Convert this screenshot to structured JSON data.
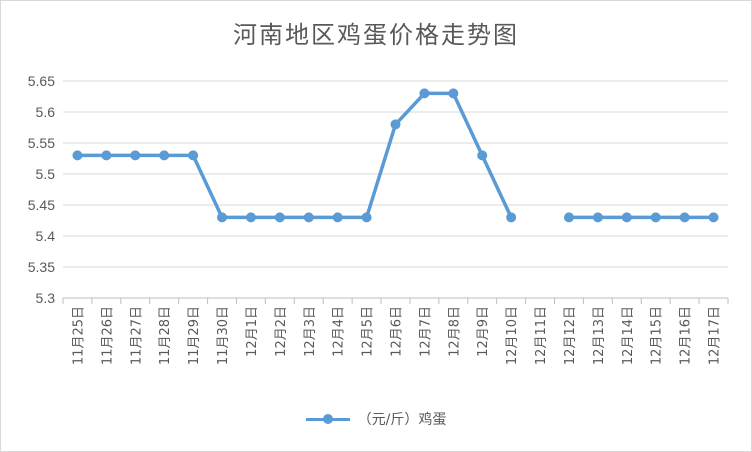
{
  "chart_data": {
    "type": "line",
    "title": "河南地区鸡蛋价格走势图",
    "categories": [
      "11月25日",
      "11月26日",
      "11月27日",
      "11月28日",
      "11月29日",
      "11月30日",
      "12月1日",
      "12月2日",
      "12月3日",
      "12月4日",
      "12月5日",
      "12月6日",
      "12月7日",
      "12月8日",
      "12月9日",
      "12月10日",
      "12月11日",
      "12月12日",
      "12月13日",
      "12月14日",
      "12月15日",
      "12月16日",
      "12月17日"
    ],
    "series": [
      {
        "name": "（元/斤）鸡蛋",
        "values": [
          5.53,
          5.53,
          5.53,
          5.53,
          5.53,
          5.43,
          5.43,
          5.43,
          5.43,
          5.43,
          5.43,
          5.58,
          5.63,
          5.63,
          5.53,
          5.43,
          null,
          5.43,
          5.43,
          5.43,
          5.43,
          5.43,
          5.43
        ],
        "color": "#5b9bd5"
      }
    ],
    "yticks": [
      "5.3",
      "5.35",
      "5.4",
      "5.45",
      "5.5",
      "5.55",
      "5.6",
      "5.65"
    ],
    "ylim": [
      5.3,
      5.65
    ],
    "grid": true,
    "legend": "bottom"
  }
}
